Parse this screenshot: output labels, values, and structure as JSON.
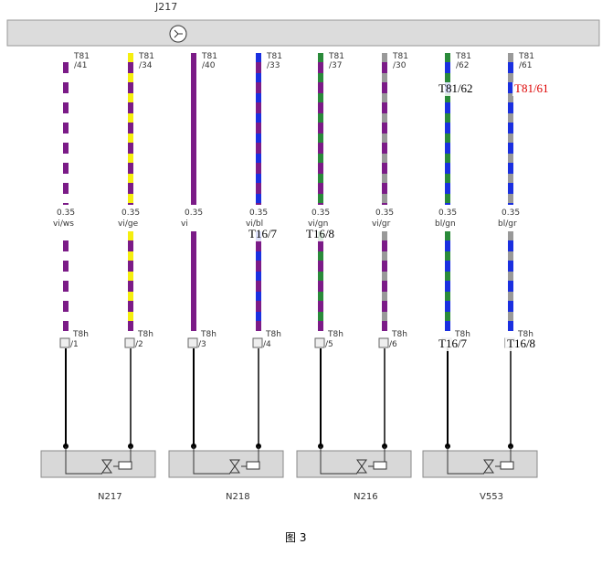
{
  "header": {
    "title": "J217"
  },
  "wires": [
    {
      "pin": "T81",
      "pin_num": "/41",
      "gauge": "0.35",
      "color": "vi/ws",
      "connector": "T8h",
      "connector_num": "/1"
    },
    {
      "pin": "T81",
      "pin_num": "/34",
      "gauge": "0.35",
      "color": "vi/ge",
      "connector": "T8h",
      "connector_num": "/2"
    },
    {
      "pin": "T81",
      "pin_num": "/40",
      "gauge": "0.35",
      "color": "vi",
      "connector": "T8h",
      "connector_num": "/3"
    },
    {
      "pin": "T81",
      "pin_num": "/33",
      "gauge": "0.35",
      "color": "vi/bl",
      "connector": "T8h",
      "connector_num": "/4"
    },
    {
      "pin": "T81",
      "pin_num": "/37",
      "gauge": "0.35",
      "color": "vi/gn",
      "connector": "T8h",
      "connector_num": "/5"
    },
    {
      "pin": "T81",
      "pin_num": "/30",
      "gauge": "0.35",
      "color": "vi/gr",
      "connector": "T8h",
      "connector_num": "/6"
    },
    {
      "pin": "T81",
      "pin_num": "/62",
      "gauge": "0.35",
      "color": "bl/gn",
      "connector": "T8h"
    },
    {
      "pin": "T81",
      "pin_num": "/61",
      "gauge": "0.35",
      "color": "bl/gr",
      "connector": "T8h"
    }
  ],
  "annotations": [
    "T81/62",
    "T81/61",
    "T16/7",
    "T16/8",
    "T16/7",
    "T16/8"
  ],
  "components": [
    "N217",
    "N218",
    "N216",
    "V553"
  ],
  "caption": "图 3"
}
